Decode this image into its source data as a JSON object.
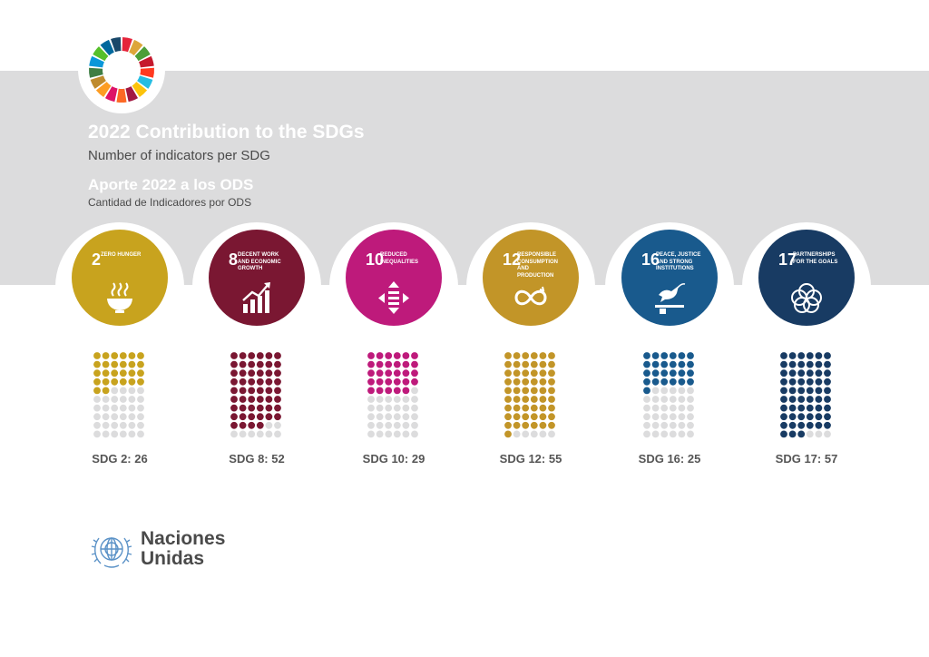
{
  "header": {
    "title": "2022 Contribution to the SDGs",
    "subtitle": "Number of indicators per SDG",
    "title_es": "Aporte 2022 a los ODS",
    "subtitle_es": "Cantidad de Indicadores por ODS"
  },
  "goals": [
    {
      "number": "2",
      "name": "Zero hunger",
      "color": "#c8a31e",
      "icon": "soup-bowl-icon"
    },
    {
      "number": "8",
      "name": "Decent work and economic growth",
      "color": "#7a1732",
      "icon": "growth-chart-icon"
    },
    {
      "number": "10",
      "name": "Reduced inequalities",
      "color": "#be1a7b",
      "icon": "equality-arrows-icon"
    },
    {
      "number": "12",
      "name": "Responsible consumption and production",
      "color": "#c29528",
      "icon": "infinity-icon"
    },
    {
      "number": "16",
      "name": "Peace, justice and strong institutions",
      "color": "#195a8d",
      "icon": "dove-gavel-icon"
    },
    {
      "number": "17",
      "name": "Partnerships for the goals",
      "color": "#183b63",
      "icon": "rings-icon"
    }
  ],
  "chart_data": {
    "type": "bar",
    "title": "2022 Contribution to the SDGs",
    "subtitle": "Number of indicators per SDG",
    "categories": [
      "SDG 2",
      "SDG 8",
      "SDG 10",
      "SDG 12",
      "SDG 16",
      "SDG 17"
    ],
    "values": [
      26,
      52,
      29,
      55,
      25,
      57
    ],
    "labels": [
      "SDG 2: 26",
      "SDG 8: 52",
      "SDG 10: 29",
      "SDG 12: 55",
      "SDG 16: 25",
      "SDG 17: 57"
    ],
    "dot_grid_capacity": 60,
    "colors": [
      "#c8a31e",
      "#7a1732",
      "#be1a7b",
      "#c29528",
      "#195a8d",
      "#183b63"
    ],
    "empty_color": "#dcdcdd"
  },
  "footer": {
    "org_line1": "Naciones",
    "org_line2": "Unidas",
    "logo_icon": "un-emblem-icon"
  },
  "sdg_wheel_colors": [
    "#e5243b",
    "#dda63a",
    "#4c9f38",
    "#c5192d",
    "#ff3a21",
    "#26bde2",
    "#fcc30b",
    "#a21942",
    "#fd6925",
    "#dd1367",
    "#fd9d24",
    "#bf8b2e",
    "#3f7e44",
    "#0a97d9",
    "#56c02b",
    "#00689d",
    "#19486a"
  ]
}
